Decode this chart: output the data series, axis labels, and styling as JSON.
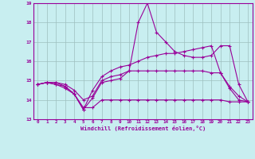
{
  "xlabel": "Windchill (Refroidissement éolien,°C)",
  "bg_color": "#c8eef0",
  "line_color": "#990099",
  "grid_color": "#9dbfbf",
  "xlim": [
    -0.5,
    23.5
  ],
  "ylim": [
    13,
    19
  ],
  "xticks": [
    0,
    1,
    2,
    3,
    4,
    5,
    6,
    7,
    8,
    9,
    10,
    11,
    12,
    13,
    14,
    15,
    16,
    17,
    18,
    19,
    20,
    21,
    22,
    23
  ],
  "yticks": [
    13,
    14,
    15,
    16,
    17,
    18,
    19
  ],
  "lines": [
    [
      14.8,
      14.9,
      14.8,
      14.6,
      14.3,
      13.5,
      14.1,
      14.9,
      15.0,
      15.1,
      15.5,
      18.0,
      19.0,
      17.5,
      17.0,
      16.5,
      16.3,
      16.2,
      16.2,
      16.3,
      16.8,
      16.8,
      14.8,
      13.9
    ],
    [
      14.8,
      14.9,
      14.8,
      14.7,
      14.3,
      13.5,
      14.5,
      15.2,
      15.5,
      15.7,
      15.8,
      16.0,
      16.2,
      16.3,
      16.4,
      16.4,
      16.5,
      16.6,
      16.7,
      16.8,
      15.4,
      14.7,
      14.2,
      13.9
    ],
    [
      14.8,
      14.9,
      14.9,
      14.7,
      14.3,
      13.6,
      13.6,
      14.0,
      14.0,
      14.0,
      14.0,
      14.0,
      14.0,
      14.0,
      14.0,
      14.0,
      14.0,
      14.0,
      14.0,
      14.0,
      14.0,
      13.9,
      13.9,
      13.9
    ],
    [
      14.8,
      14.9,
      14.9,
      14.8,
      14.5,
      14.0,
      14.2,
      15.0,
      15.2,
      15.3,
      15.5,
      15.5,
      15.5,
      15.5,
      15.5,
      15.5,
      15.5,
      15.5,
      15.5,
      15.4,
      15.4,
      14.6,
      14.0,
      13.9
    ]
  ]
}
